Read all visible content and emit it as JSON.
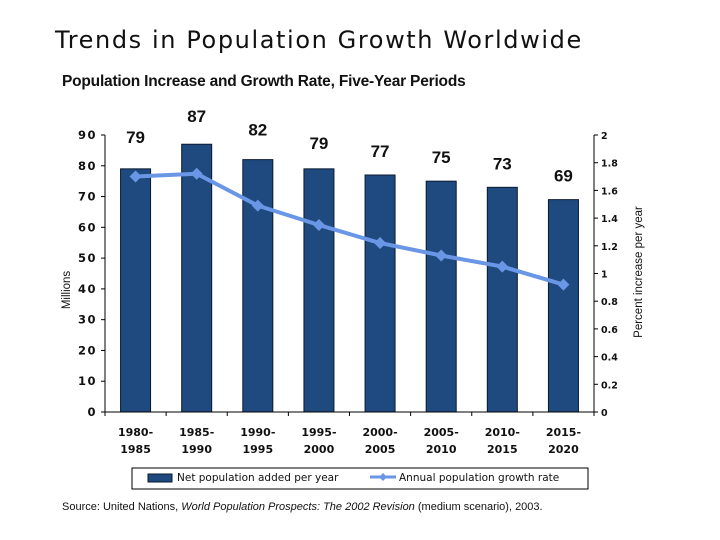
{
  "slide": {
    "title": "Trends in Population Growth Worldwide"
  },
  "source": {
    "prefix": "Source: United Nations, ",
    "title_italic": "World Population Prospects: The 2002 Revision",
    "suffix": " (medium scenario), 2003."
  },
  "colors": {
    "bar": "#1F4A7F",
    "bar_outline": "#0a1a30",
    "line": "#6A96E6",
    "axis": "#000000"
  },
  "chart_data": {
    "type": "bar",
    "title": "Population Increase and Growth Rate, Five-Year Periods",
    "xlabel": "",
    "ylabel": "Millions",
    "y2label": "Percent increase per year",
    "categories": [
      [
        "1980-",
        "1985"
      ],
      [
        "1985-",
        "1990"
      ],
      [
        "1990-",
        "1995"
      ],
      [
        "1995-",
        "2000"
      ],
      [
        "2000-",
        "2005"
      ],
      [
        "2005-",
        "2010"
      ],
      [
        "2010-",
        "2015"
      ],
      [
        "2015-",
        "2020"
      ]
    ],
    "ylim": [
      0,
      90
    ],
    "yticks": [
      0,
      10,
      20,
      30,
      40,
      50,
      60,
      70,
      80,
      90
    ],
    "y2lim": [
      0,
      2
    ],
    "y2ticks": [
      "0",
      "0.2",
      "0.4",
      "0.6",
      "0.8",
      "1",
      "1.2",
      "1.4",
      "1.6",
      "1.8",
      "2"
    ],
    "grid": false,
    "legend_position": "bottom",
    "series": [
      {
        "name": "Net population added per year",
        "type": "bar",
        "axis": "left",
        "values": [
          79,
          87,
          82,
          79,
          77,
          75,
          73,
          69
        ],
        "data_labels": [
          "79",
          "87",
          "82",
          "79",
          "77",
          "75",
          "73",
          "69"
        ]
      },
      {
        "name": "Annual population growth rate",
        "type": "line",
        "axis": "right",
        "marker": "diamond",
        "values": [
          1.7,
          1.72,
          1.49,
          1.35,
          1.22,
          1.13,
          1.05,
          0.92
        ]
      }
    ]
  }
}
